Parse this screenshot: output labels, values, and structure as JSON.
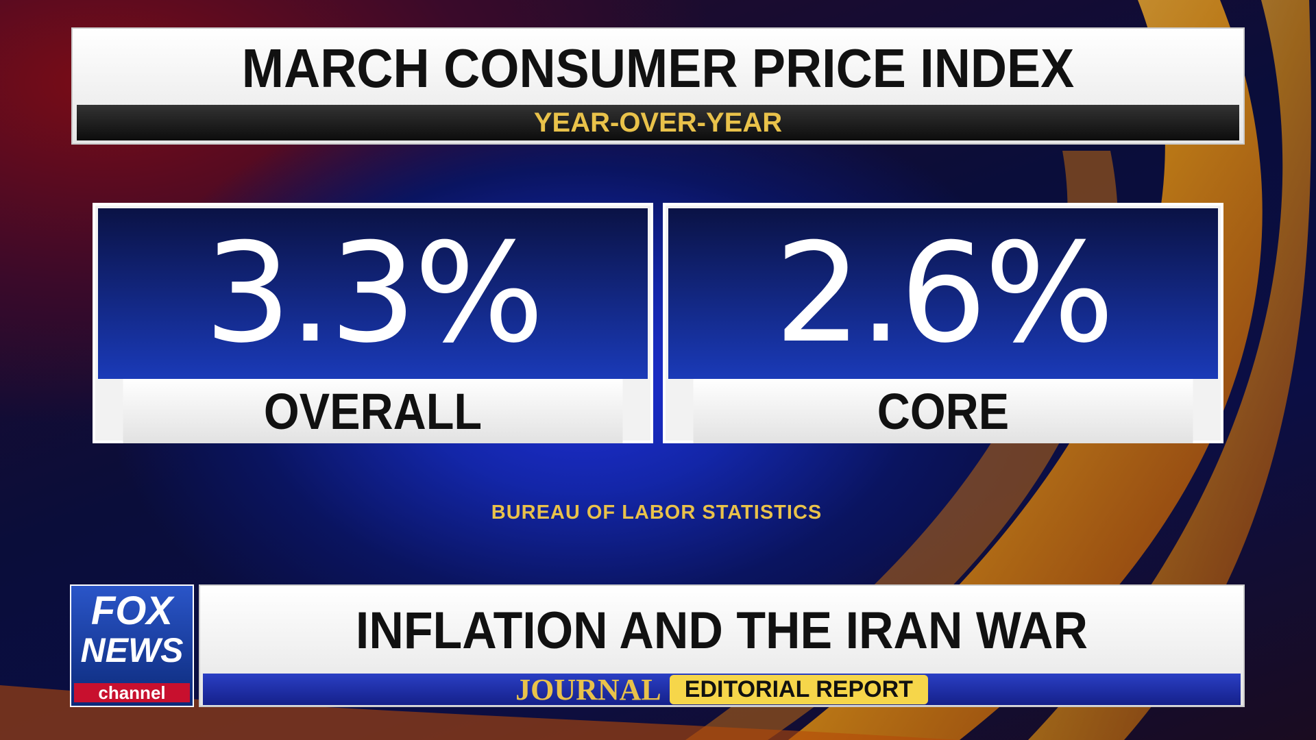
{
  "header": {
    "title": "MARCH CONSUMER PRICE INDEX",
    "subtitle": "YEAR-OVER-YEAR"
  },
  "panels": [
    {
      "value": "3.3%",
      "label": "OVERALL"
    },
    {
      "value": "2.6%",
      "label": "CORE"
    }
  ],
  "source": "BUREAU OF LABOR STATISTICS",
  "lower_third": {
    "logo_top": "FOX",
    "logo_middle": "NEWS",
    "logo_bottom": "channel",
    "headline": "INFLATION AND THE IRAN WAR",
    "show": "JOURNAL",
    "show_badge": "EDITORIAL REPORT"
  }
}
